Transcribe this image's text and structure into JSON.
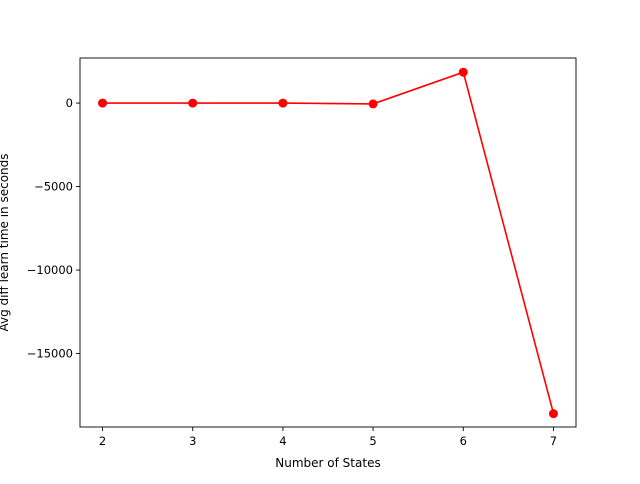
{
  "chart_data": {
    "type": "line",
    "title": "",
    "xlabel": "Number of States",
    "ylabel": "Avg diff learn time in seconds",
    "x": [
      2,
      3,
      4,
      5,
      6,
      7
    ],
    "series": [
      {
        "values": [
          0,
          0,
          0,
          -50,
          1850,
          -18600
        ],
        "color": "#ff0000",
        "marker": "circle"
      }
    ],
    "xlim": [
      1.75,
      7.25
    ],
    "ylim": [
      -19400,
      2700
    ],
    "xticks": [
      2,
      3,
      4,
      5,
      6,
      7
    ],
    "xtick_labels": [
      "2",
      "3",
      "4",
      "5",
      "6",
      "7"
    ],
    "yticks": [
      0,
      -5000,
      -10000,
      -15000
    ],
    "ytick_labels": [
      "0",
      "−5000",
      "−10000",
      "−15000"
    ],
    "grid": false,
    "legend": "none"
  }
}
